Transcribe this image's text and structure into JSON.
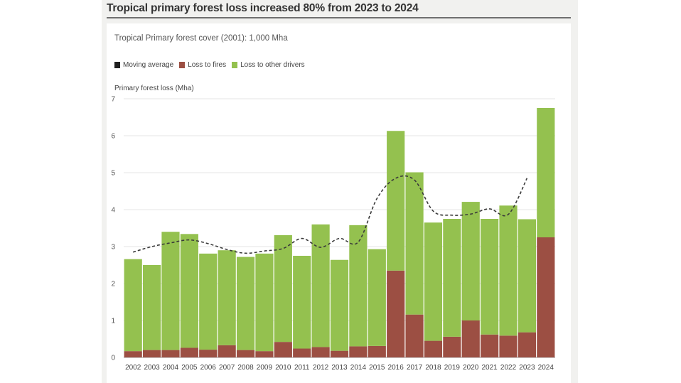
{
  "headline": "Tropical primary forest loss increased 80% from 2023 to 2024",
  "subtitle": "Tropical Primary forest cover (2001): 1,000 Mha",
  "legend": [
    {
      "label": "Moving average",
      "color": "#1f1f1f"
    },
    {
      "label": "Loss to fires",
      "color": "#9c4f43"
    },
    {
      "label": "Loss to other drivers",
      "color": "#94c14f"
    }
  ],
  "chart_data": {
    "type": "bar",
    "stacked": true,
    "ylabel": "Primary forest loss (Mha)",
    "ylim": [
      0,
      7
    ],
    "yticks": [
      0,
      1,
      2,
      3,
      4,
      5,
      6,
      7
    ],
    "categories": [
      "2002",
      "2003",
      "2004",
      "2005",
      "2006",
      "2007",
      "2008",
      "2009",
      "2010",
      "2011",
      "2012",
      "2013",
      "2014",
      "2015",
      "2016",
      "2017",
      "2018",
      "2019",
      "2020",
      "2021",
      "2022",
      "2023",
      "2024"
    ],
    "series": [
      {
        "name": "Loss to fires",
        "color": "#9c4f43",
        "values": [
          0.17,
          0.2,
          0.2,
          0.26,
          0.21,
          0.33,
          0.2,
          0.17,
          0.42,
          0.24,
          0.28,
          0.18,
          0.3,
          0.31,
          2.35,
          1.16,
          0.45,
          0.56,
          1.0,
          0.62,
          0.59,
          0.68,
          3.25
        ]
      },
      {
        "name": "Loss to other drivers",
        "color": "#94c14f",
        "values": [
          2.49,
          2.3,
          3.2,
          3.08,
          2.6,
          2.57,
          2.52,
          2.64,
          2.89,
          2.51,
          3.32,
          2.46,
          3.28,
          2.62,
          3.78,
          3.85,
          3.2,
          3.19,
          3.21,
          3.13,
          3.52,
          3.06,
          3.5
        ]
      },
      {
        "name": "Moving average",
        "color": "#3a3a3a",
        "type": "line",
        "values": [
          2.85,
          3.0,
          3.1,
          3.18,
          3.08,
          2.92,
          2.82,
          2.88,
          2.95,
          3.22,
          2.98,
          3.22,
          3.12,
          4.3,
          4.85,
          4.8,
          3.96,
          3.85,
          3.88,
          4.02,
          3.87,
          4.85,
          null
        ]
      }
    ],
    "grid": true,
    "legend_position": "top-left"
  }
}
